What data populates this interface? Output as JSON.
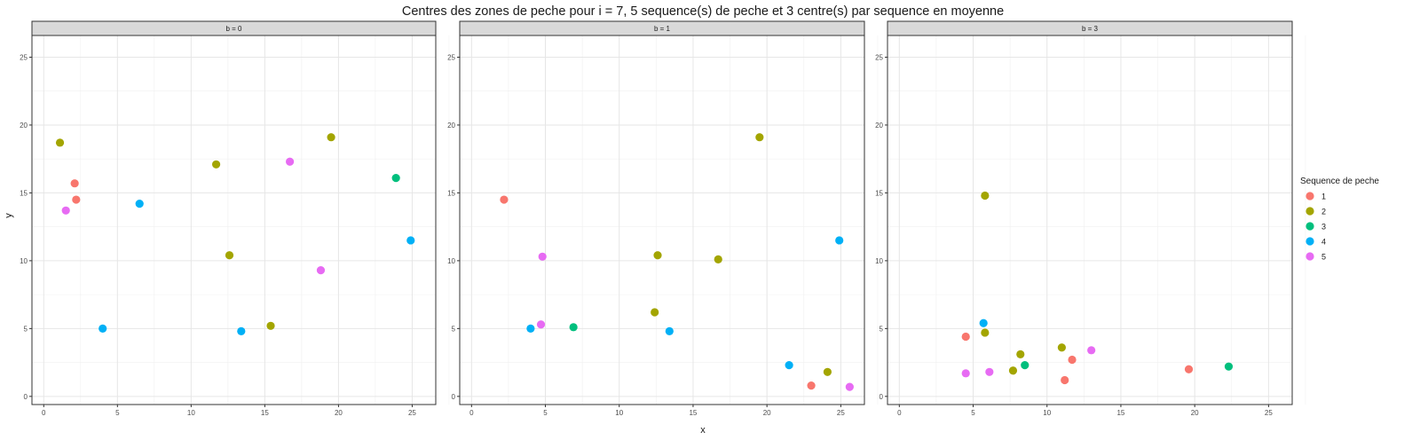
{
  "chart_data": {
    "type": "scatter",
    "title": "Centres des zones de peche pour i = 7, 5 sequence(s) de peche et 3 centre(s) par sequence en moyenne",
    "xlabel": "x",
    "ylabel": "y",
    "xlim": [
      -0.8,
      26.6
    ],
    "ylim": [
      -0.6,
      26.6
    ],
    "x_ticks": [
      0,
      5,
      10,
      15,
      20,
      25
    ],
    "y_ticks": [
      0,
      5,
      10,
      15,
      20,
      25
    ],
    "grid": true,
    "legend": {
      "title": "Sequence de peche",
      "placement": "right",
      "entries": [
        "1",
        "2",
        "3",
        "4",
        "5"
      ]
    },
    "series_colors": {
      "1": "#F8766D",
      "2": "#A3A500",
      "3": "#00BF7D",
      "4": "#00B0F6",
      "5": "#E76BF3"
    },
    "facets": [
      {
        "label": "b = 0",
        "points": [
          {
            "seq": "1",
            "x": 2.1,
            "y": 15.7
          },
          {
            "seq": "1",
            "x": 2.2,
            "y": 14.5
          },
          {
            "seq": "2",
            "x": 1.1,
            "y": 18.7
          },
          {
            "seq": "2",
            "x": 11.7,
            "y": 17.1
          },
          {
            "seq": "2",
            "x": 19.5,
            "y": 19.1
          },
          {
            "seq": "2",
            "x": 12.6,
            "y": 10.4
          },
          {
            "seq": "2",
            "x": 15.4,
            "y": 5.2
          },
          {
            "seq": "3",
            "x": 23.9,
            "y": 16.1
          },
          {
            "seq": "4",
            "x": 6.5,
            "y": 14.2
          },
          {
            "seq": "4",
            "x": 4.0,
            "y": 5.0
          },
          {
            "seq": "4",
            "x": 13.4,
            "y": 4.8
          },
          {
            "seq": "4",
            "x": 24.9,
            "y": 11.5
          },
          {
            "seq": "5",
            "x": 1.5,
            "y": 13.7
          },
          {
            "seq": "5",
            "x": 16.7,
            "y": 17.3
          },
          {
            "seq": "5",
            "x": 18.8,
            "y": 9.3
          }
        ]
      },
      {
        "label": "b = 1",
        "points": [
          {
            "seq": "1",
            "x": 2.2,
            "y": 14.5
          },
          {
            "seq": "1",
            "x": 23.0,
            "y": 0.8
          },
          {
            "seq": "2",
            "x": 19.5,
            "y": 19.1
          },
          {
            "seq": "2",
            "x": 12.6,
            "y": 10.4
          },
          {
            "seq": "2",
            "x": 16.7,
            "y": 10.1
          },
          {
            "seq": "2",
            "x": 12.4,
            "y": 6.2
          },
          {
            "seq": "2",
            "x": 24.1,
            "y": 1.8
          },
          {
            "seq": "3",
            "x": 6.9,
            "y": 5.1
          },
          {
            "seq": "4",
            "x": 4.0,
            "y": 5.0
          },
          {
            "seq": "4",
            "x": 13.4,
            "y": 4.8
          },
          {
            "seq": "4",
            "x": 21.5,
            "y": 2.3
          },
          {
            "seq": "4",
            "x": 24.9,
            "y": 11.5
          },
          {
            "seq": "5",
            "x": 4.8,
            "y": 10.3
          },
          {
            "seq": "5",
            "x": 4.7,
            "y": 5.3
          },
          {
            "seq": "5",
            "x": 25.6,
            "y": 0.7
          }
        ]
      },
      {
        "label": "b = 3",
        "points": [
          {
            "seq": "1",
            "x": 4.5,
            "y": 4.4
          },
          {
            "seq": "1",
            "x": 11.7,
            "y": 2.7
          },
          {
            "seq": "1",
            "x": 11.2,
            "y": 1.2
          },
          {
            "seq": "1",
            "x": 19.6,
            "y": 2.0
          },
          {
            "seq": "2",
            "x": 5.8,
            "y": 14.8
          },
          {
            "seq": "2",
            "x": 5.8,
            "y": 4.7
          },
          {
            "seq": "2",
            "x": 8.2,
            "y": 3.1
          },
          {
            "seq": "2",
            "x": 11.0,
            "y": 3.6
          },
          {
            "seq": "2",
            "x": 7.7,
            "y": 1.9
          },
          {
            "seq": "3",
            "x": 8.5,
            "y": 2.3
          },
          {
            "seq": "3",
            "x": 22.3,
            "y": 2.2
          },
          {
            "seq": "4",
            "x": 5.7,
            "y": 5.4
          },
          {
            "seq": "5",
            "x": 4.5,
            "y": 1.7
          },
          {
            "seq": "5",
            "x": 6.1,
            "y": 1.8
          },
          {
            "seq": "5",
            "x": 13.0,
            "y": 3.4
          }
        ]
      }
    ]
  }
}
